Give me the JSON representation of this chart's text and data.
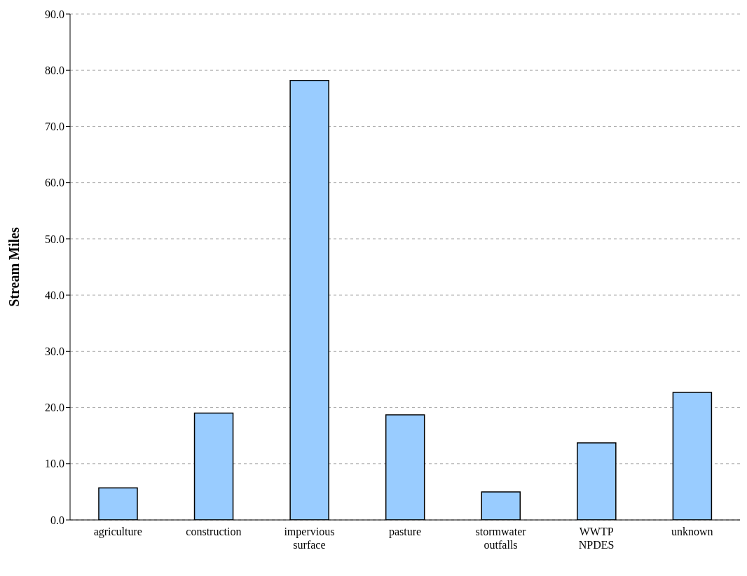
{
  "chart_data": {
    "type": "bar",
    "ylabel": "Stream Miles",
    "categories": [
      "agriculture",
      "construction",
      "impervious surface",
      "pasture",
      "stormwater outfalls",
      "WWTP NPDES",
      "unknown"
    ],
    "values": [
      5.7,
      19.0,
      78.2,
      18.7,
      5.0,
      13.7,
      22.7
    ],
    "color": "#99ccff",
    "ylim": [
      0,
      90
    ],
    "yticks": [
      {
        "value": 0,
        "label": "0.0"
      },
      {
        "value": 10,
        "label": "10.0"
      },
      {
        "value": 20,
        "label": "20.0"
      },
      {
        "value": 30,
        "label": "30.0"
      },
      {
        "value": 40,
        "label": "40.0"
      },
      {
        "value": 50,
        "label": "50.0"
      },
      {
        "value": 60,
        "label": "60.0"
      },
      {
        "value": 70,
        "label": "70.0"
      },
      {
        "value": 80,
        "label": "80.0"
      },
      {
        "value": 90,
        "label": "90.0"
      }
    ],
    "grid": "y"
  }
}
